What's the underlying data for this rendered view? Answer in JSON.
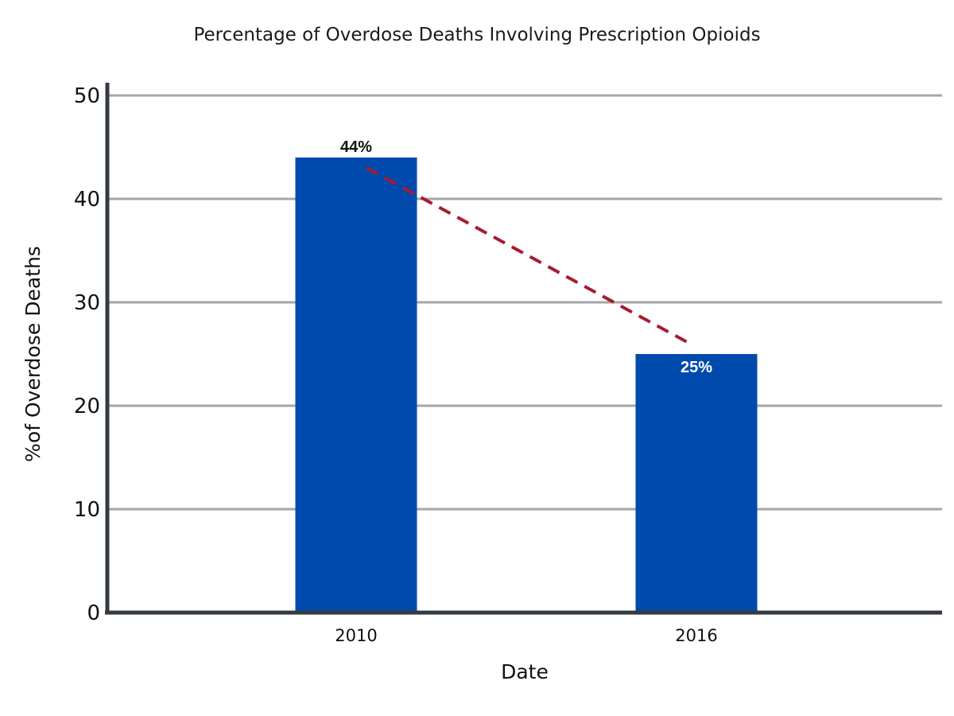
{
  "chart_data": {
    "type": "bar",
    "title": "Percentage of Overdose Deaths Involving Prescription Opioids",
    "xlabel": "Date",
    "ylabel": "%of Overdose Deaths",
    "categories": [
      "2010",
      "2016"
    ],
    "values": [
      44,
      25
    ],
    "data_labels": [
      "44%",
      "25%"
    ],
    "ylim": [
      0,
      50
    ],
    "yticks": [
      0,
      10,
      20,
      30,
      40,
      50
    ],
    "ytick_labels": [
      "0",
      "10",
      "20",
      "30",
      "40",
      "50"
    ],
    "grid": true,
    "legend": "none",
    "trend_line": {
      "style": "dashed",
      "from_value": 43,
      "to_value": 26
    },
    "colors": {
      "bar": "#004AAD",
      "trend_line": "#A51C30",
      "grid": "#A6A6A6",
      "axis": "#333A40",
      "label_outside": "#111111",
      "label_inside": "#FFFFFF"
    }
  }
}
